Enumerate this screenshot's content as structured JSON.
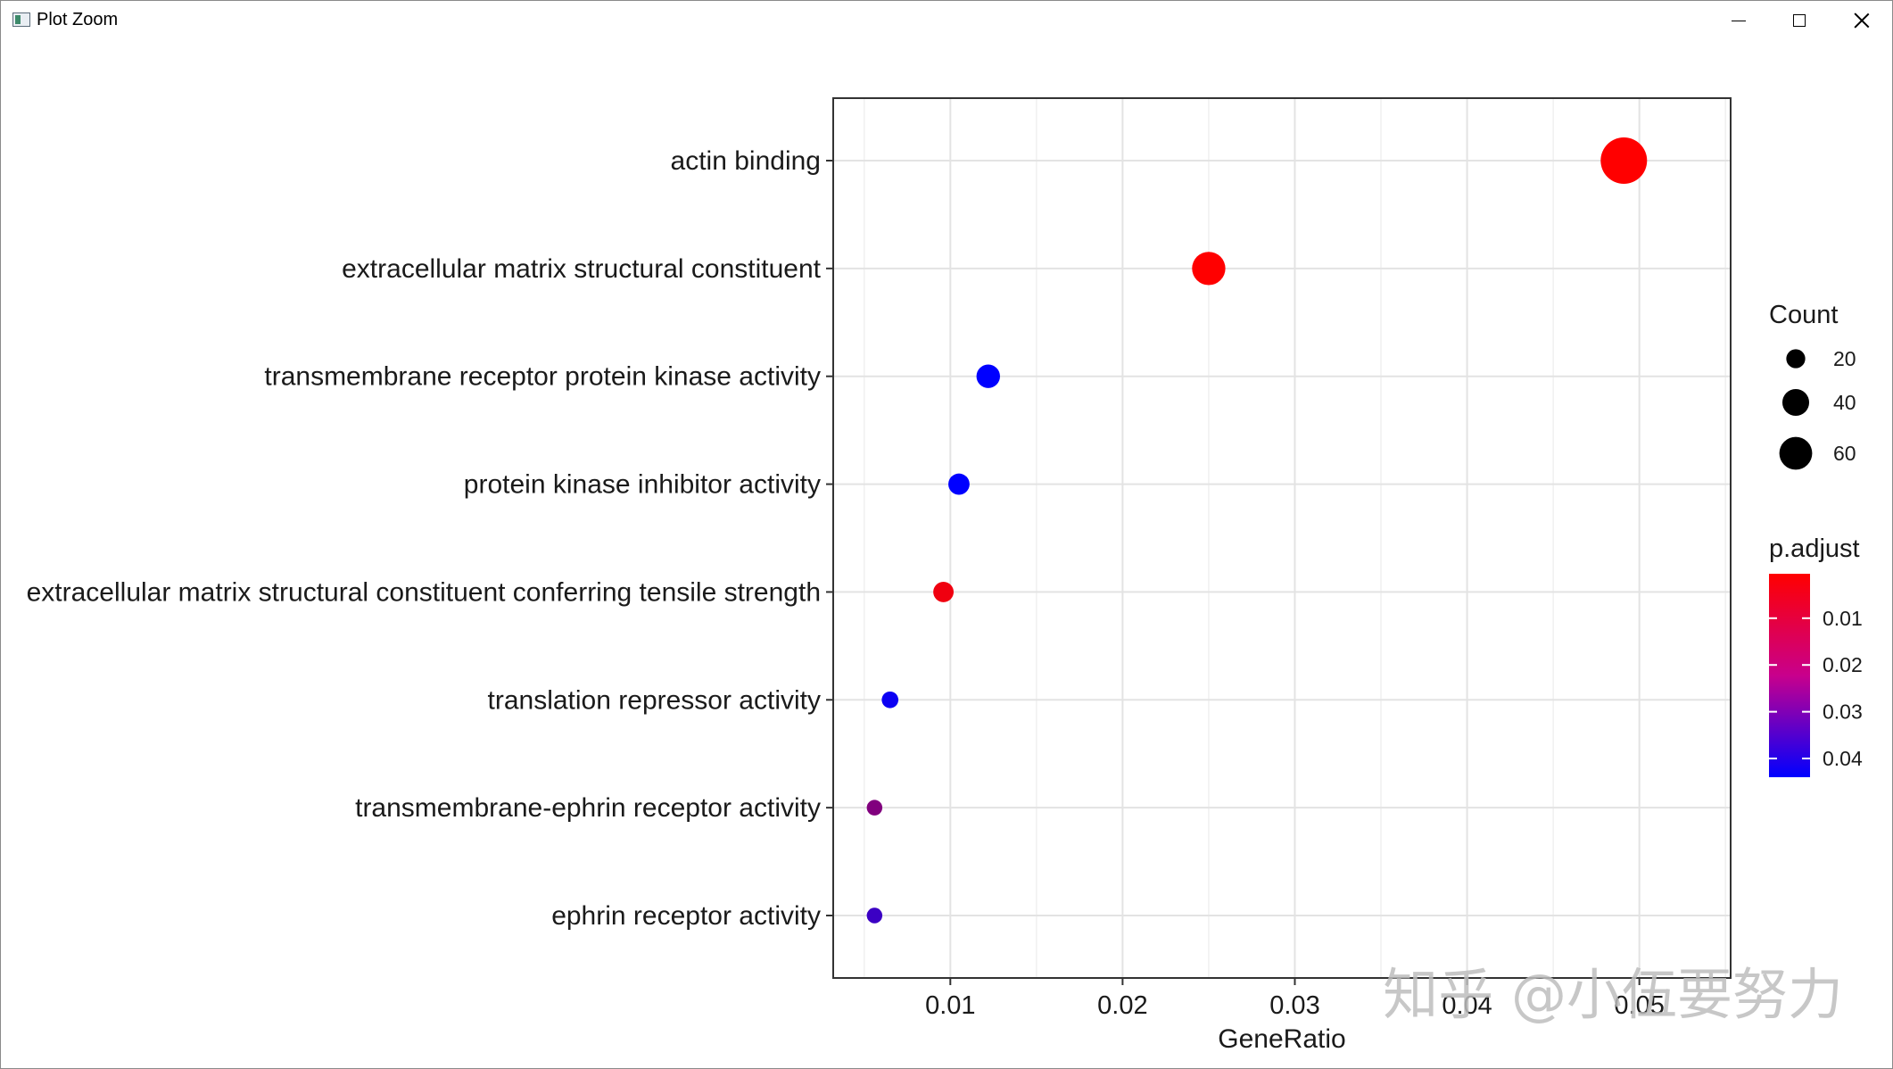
{
  "window": {
    "title": "Plot Zoom",
    "controls": {
      "minimize": "minimize-icon",
      "maximize": "maximize-icon",
      "close": "close-icon"
    }
  },
  "watermark": "知乎 @小伍要努力",
  "chart_data": {
    "type": "scatter",
    "xlabel": "GeneRatio",
    "ylabel": "",
    "xlim": [
      0.0032,
      0.0553
    ],
    "x_ticks": [
      0.01,
      0.02,
      0.03,
      0.04,
      0.05
    ],
    "x_tick_labels": [
      "0.01",
      "0.02",
      "0.03",
      "0.04",
      "0.05"
    ],
    "grid": true,
    "categories": [
      "actin binding",
      "extracellular matrix structural constituent",
      "transmembrane receptor protein kinase activity",
      "protein kinase inhibitor activity",
      "extracellular matrix structural constituent conferring tensile strength",
      "translation repressor activity",
      "transmembrane-ephrin receptor activity",
      "ephrin receptor activity"
    ],
    "points": [
      {
        "term": "actin binding",
        "gene_ratio": 0.0491,
        "count": 62,
        "p_adjust": 0.0005
      },
      {
        "term": "extracellular matrix structural constituent",
        "gene_ratio": 0.025,
        "count": 32,
        "p_adjust": 0.0005
      },
      {
        "term": "transmembrane receptor protein kinase activity",
        "gene_ratio": 0.0122,
        "count": 16,
        "p_adjust": 0.044
      },
      {
        "term": "protein kinase inhibitor activity",
        "gene_ratio": 0.0105,
        "count": 13,
        "p_adjust": 0.044
      },
      {
        "term": "extracellular matrix structural constituent conferring tensile strength",
        "gene_ratio": 0.0096,
        "count": 12,
        "p_adjust": 0.003
      },
      {
        "term": "translation repressor activity",
        "gene_ratio": 0.0065,
        "count": 8,
        "p_adjust": 0.042
      },
      {
        "term": "transmembrane-ephrin receptor activity",
        "gene_ratio": 0.0056,
        "count": 7,
        "p_adjust": 0.022
      },
      {
        "term": "ephrin receptor activity",
        "gene_ratio": 0.0056,
        "count": 7,
        "p_adjust": 0.034
      }
    ],
    "legend_size": {
      "title": "Count",
      "placement": "right",
      "values": [
        20,
        40,
        60
      ],
      "labels": [
        "20",
        "40",
        "60"
      ]
    },
    "legend_color": {
      "title": "p.adjust",
      "placement": "right",
      "range": [
        0.0005,
        0.044
      ],
      "ticks": [
        0.01,
        0.02,
        0.03,
        0.04
      ],
      "labels": [
        "0.01",
        "0.02",
        "0.03",
        "0.04"
      ],
      "low_color": "#ff0000",
      "high_color": "#0000ff"
    }
  }
}
